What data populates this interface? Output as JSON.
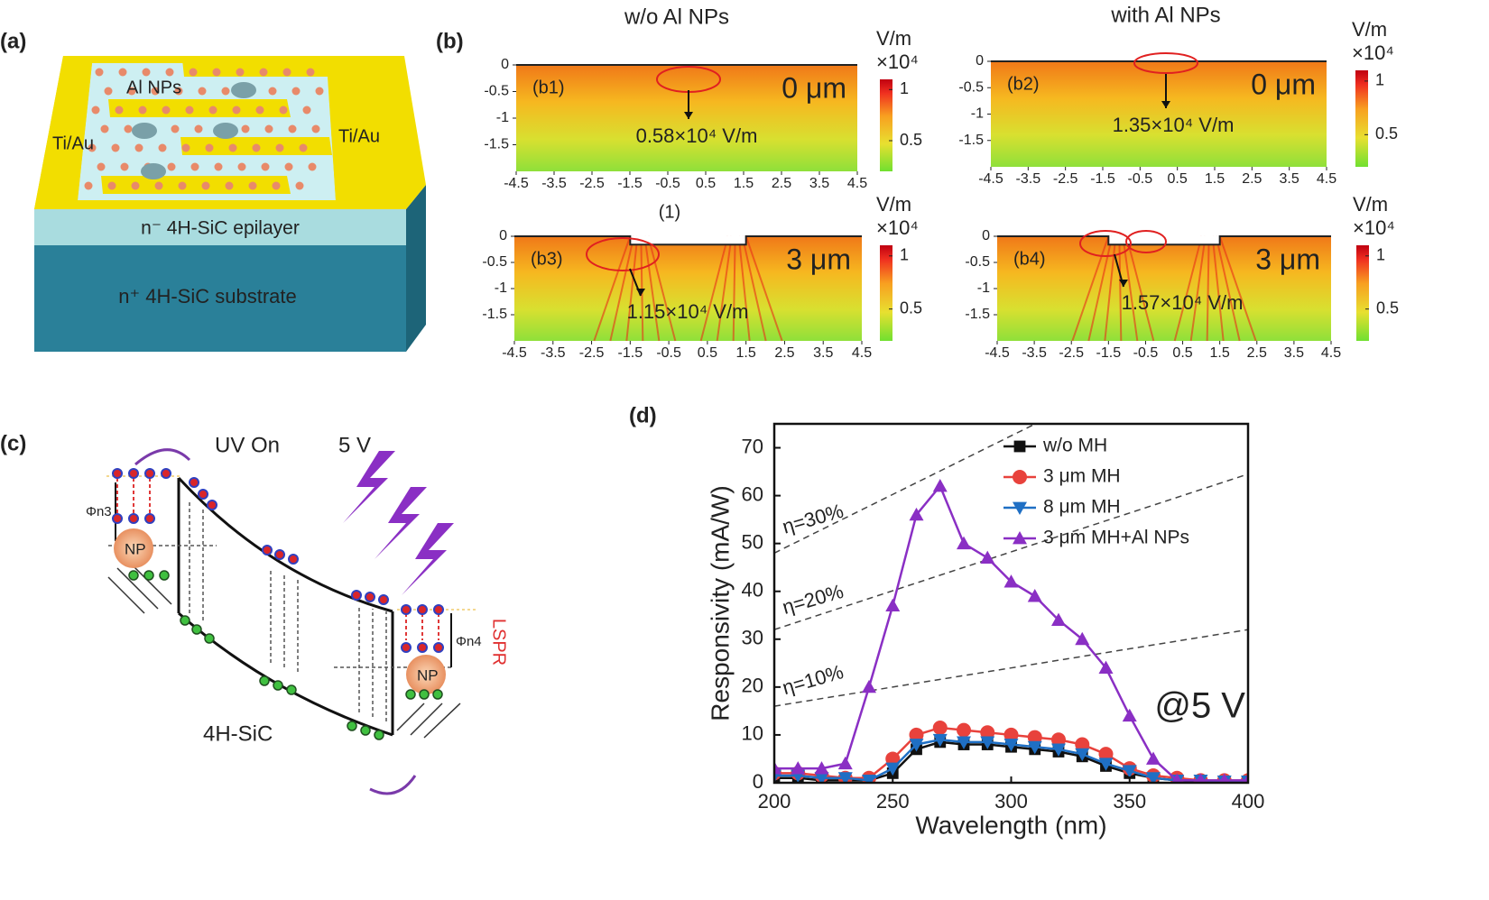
{
  "panels": {
    "a": {
      "label": "(a)",
      "nanoparticles": "Al NPs",
      "electrode_left": "Ti/Au",
      "electrode_right": "Ti/Au",
      "epilayer": "n⁻ 4H-SiC epilayer",
      "substrate": "n⁺ 4H-SiC substrate"
    },
    "b": {
      "label": "(b)",
      "column_titles": [
        "w/o Al NPs",
        "with Al NPs"
      ],
      "center_label": "(1)",
      "xlim": [
        -4.5,
        4.5
      ],
      "ylim": [
        -2,
        0
      ],
      "xticks": [
        -4.5,
        -3.5,
        -2.5,
        -1.5,
        -0.5,
        0.5,
        1.5,
        2.5,
        3.5,
        4.5
      ],
      "yticks": [
        0,
        -0.5,
        -1,
        -1.5
      ],
      "colorbar_lim": [
        0.2,
        1.1
      ],
      "colorbar_ticks": [
        1,
        0.5
      ],
      "maps": [
        {
          "label": "(b1)",
          "depth": "0 μm",
          "field": "0.58×10⁴ V/m",
          "unit": "V/m",
          "scale": "×10⁴"
        },
        {
          "label": "(b2)",
          "depth": "0 μm",
          "field": "1.35×10⁴ V/m",
          "unit": "V/m",
          "scale": "×10⁴"
        },
        {
          "label": "(b3)",
          "depth": "3 μm",
          "field": "1.15×10⁴ V/m",
          "unit": "V/m",
          "scale": "×10⁴"
        },
        {
          "label": "(b4)",
          "depth": "3 μm",
          "field": "1.57×10⁴ V/m",
          "unit": "V/m",
          "scale": "×10⁴"
        }
      ]
    },
    "c": {
      "label": "(c)",
      "uv": "UV On",
      "bias": "5 V",
      "barrier_left": "Φn3",
      "barrier_right": "Φn4",
      "np_left": "NP",
      "np_right": "NP",
      "lspr": "LSPR",
      "material": "4H-SiC"
    },
    "d": {
      "label": "(d)"
    }
  },
  "chart_data": {
    "type": "line",
    "xlabel": "Wavelength (nm)",
    "ylabel": "Responsivity (mA/W)",
    "x": [
      200,
      210,
      220,
      230,
      240,
      250,
      260,
      270,
      280,
      290,
      300,
      310,
      320,
      330,
      340,
      350,
      360,
      370,
      380,
      390,
      400
    ],
    "xlim": [
      200,
      400
    ],
    "xticks": [
      200,
      250,
      300,
      350,
      400
    ],
    "ylim": [
      0,
      75
    ],
    "yticks": [
      0,
      10,
      20,
      30,
      40,
      50,
      60,
      70
    ],
    "grid": false,
    "legend": "upper right",
    "series": [
      {
        "name": "w/o MH",
        "color": "#111111",
        "marker": "square",
        "values": [
          1,
          1,
          0.5,
          0.5,
          0.5,
          2,
          7,
          8.5,
          8,
          8,
          7.5,
          7,
          6.5,
          5.5,
          3.5,
          2,
          1,
          0.5,
          0.3,
          0.3,
          0.3
        ]
      },
      {
        "name": "3 μm MH",
        "color": "#e8423c",
        "marker": "circle",
        "values": [
          2,
          2,
          1.5,
          1,
          1,
          5,
          10,
          11.5,
          11,
          10.5,
          10,
          9.5,
          9,
          8,
          6,
          3,
          1.5,
          1,
          0.5,
          0.5,
          0.5
        ]
      },
      {
        "name": "8 μm MH",
        "color": "#1f6fc4",
        "marker": "triangle-down",
        "values": [
          1.5,
          1.5,
          1,
          1,
          0.5,
          3,
          8,
          9,
          8.5,
          8.5,
          8,
          7.5,
          7,
          6,
          4,
          2.5,
          1,
          0.5,
          0.5,
          0.3,
          0.3
        ]
      },
      {
        "name": "3 μm MH+Al NPs",
        "color": "#8a2fc4",
        "marker": "triangle-up",
        "values": [
          3,
          3,
          3,
          4,
          20,
          37,
          56,
          62,
          50,
          47,
          42,
          39,
          34,
          30,
          24,
          14,
          5,
          0.5,
          0.5,
          0.5,
          0.5
        ]
      }
    ],
    "reference_lines": [
      {
        "label": "η=30%",
        "x": [
          200,
          400
        ],
        "values": [
          48,
          97
        ]
      },
      {
        "label": "η=20%",
        "x": [
          200,
          400
        ],
        "values": [
          32,
          64.5
        ]
      },
      {
        "label": "η=10%",
        "x": [
          200,
          400
        ],
        "values": [
          16,
          32
        ]
      }
    ],
    "annotations": [
      "@5 V"
    ]
  }
}
